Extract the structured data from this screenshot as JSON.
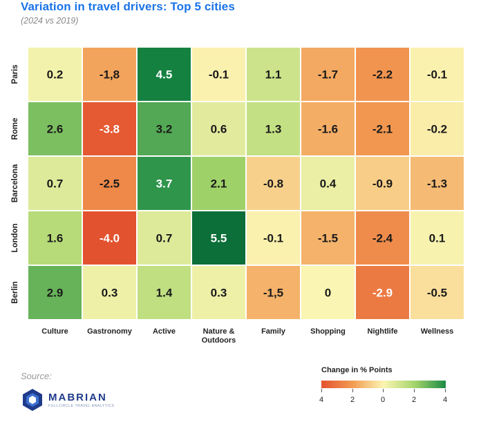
{
  "header": {
    "title": "Variation in travel drivers: Top 5 cities",
    "subtitle": "(2024 vs 2019)"
  },
  "footer": {
    "source_label": "Source:",
    "logo_name": "MABRIAN",
    "logo_tagline": "FULLCIRCLE TRAVEL ANALYTICS"
  },
  "legend": {
    "title": "Change in % Points",
    "ticks": [
      "4",
      "2",
      "0",
      "2",
      "4"
    ],
    "colors": [
      "#e3522f",
      "#f29b52",
      "#fbf5b3",
      "#a6d56b",
      "#1a8a45"
    ]
  },
  "chart_data": {
    "type": "heatmap",
    "title": "Variation in travel drivers: Top 5 cities",
    "subtitle": "(2024 vs 2019)",
    "rows": [
      "Paris",
      "Rome",
      "Barcelona",
      "London",
      "Berlin"
    ],
    "columns": [
      "Culture",
      "Gastronomy",
      "Active",
      "Nature & Outdoors",
      "Family",
      "Shopping",
      "Nightlife",
      "Wellness"
    ],
    "column_label_lines": [
      [
        "Culture"
      ],
      [
        "Gastronomy"
      ],
      [
        "Active"
      ],
      [
        "Nature &",
        "Outdoors"
      ],
      [
        "Family"
      ],
      [
        "Shopping"
      ],
      [
        "Nightlife"
      ],
      [
        "Wellness"
      ]
    ],
    "values": [
      [
        0.2,
        -1.8,
        4.5,
        -0.1,
        1.1,
        -1.7,
        -2.2,
        -0.1
      ],
      [
        2.6,
        -3.8,
        3.2,
        0.6,
        1.3,
        -1.6,
        -2.1,
        -0.2
      ],
      [
        0.7,
        -2.5,
        3.7,
        2.1,
        -0.8,
        0.4,
        -0.9,
        -1.3
      ],
      [
        1.6,
        -4.0,
        0.7,
        5.5,
        -0.1,
        -1.5,
        -2.4,
        0.1
      ],
      [
        2.9,
        0.3,
        1.4,
        0.3,
        -1.5,
        0,
        -2.9,
        -0.5
      ]
    ],
    "labels": [
      [
        "0.2",
        "-1,8",
        "4.5",
        "-0.1",
        "1.1",
        "-1.7",
        "-2.2",
        "-0.1"
      ],
      [
        "2.6",
        "-3.8",
        "3.2",
        "0.6",
        "1.3",
        "-1.6",
        "-2.1",
        "-0.2"
      ],
      [
        "0.7",
        "-2.5",
        "3.7",
        "2.1",
        "-0.8",
        "0.4",
        "-0.9",
        "-1.3"
      ],
      [
        "1.6",
        "-4.0",
        "0.7",
        "5.5",
        "-0.1",
        "-1.5",
        "-2.4",
        "0.1"
      ],
      [
        "2.9",
        "0.3",
        "1.4",
        "0.3",
        "-1,5",
        "0",
        "-2.9",
        "-0.5"
      ]
    ],
    "color_scale": {
      "stops": [
        -4,
        -2,
        0,
        2,
        4
      ],
      "colors": [
        "#e3522f",
        "#f29b52",
        "#fbf5b3",
        "#a6d56b",
        "#1a8a45"
      ]
    },
    "legend_title": "Change in % Points",
    "legend_placement": "bottom-right",
    "grid": false
  }
}
